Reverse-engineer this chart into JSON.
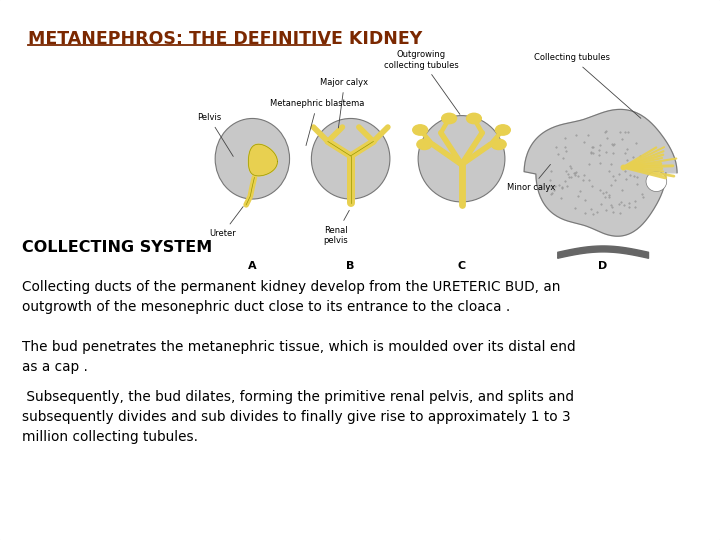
{
  "title": "METANEPHROS: THE DEFINITIVE KIDNEY",
  "title_color": "#7B2800",
  "title_fontsize": 12.5,
  "bg_color": "#FFFFFF",
  "border_color": "#BBBBBB",
  "section_label": "COLLECTING SYSTEM",
  "section_label_fontsize": 11.5,
  "paragraph1": "Collecting ducts of the permanent kidney develop from the URETERIC BUD, an\noutgrowth of the mesonephric duct close to its entrance to the cloaca .",
  "paragraph2": "The bud penetrates the metanephric tissue, which is moulded over its distal end\nas a cap .",
  "paragraph3": " Subsequently, the bud dilates, forming the primitive renal pelvis, and splits and\nsubsequently divides and sub divides to finally give rise to approximately 1 to 3\nmillion collecting tubules.",
  "body_fontsize": 9.8,
  "gray": "#C8C8C8",
  "dark_gray": "#A0A0A0",
  "yellow": "#E8D050",
  "annot_fontsize": 6.0
}
